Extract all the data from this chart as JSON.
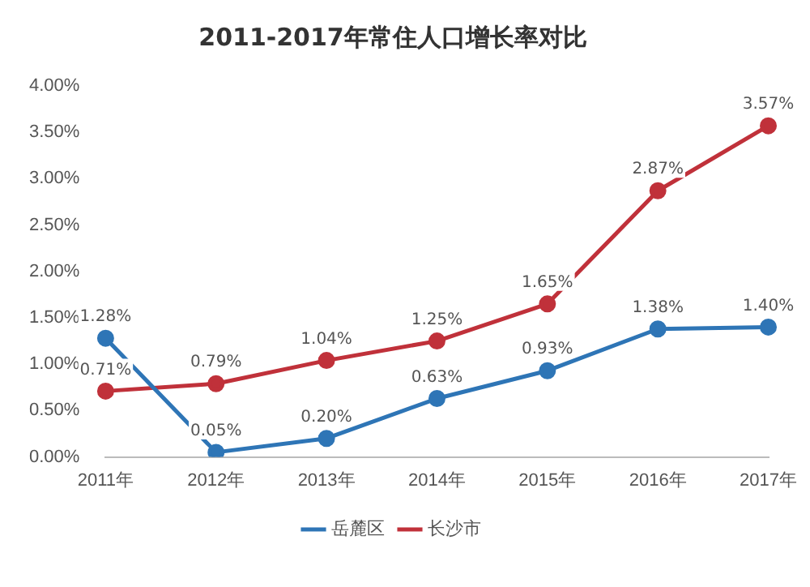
{
  "chart_data": {
    "type": "line",
    "title": "2011-2017年常住人口增长率对比",
    "categories": [
      "2011年",
      "2012年",
      "2013年",
      "2014年",
      "2015年",
      "2016年",
      "2017年"
    ],
    "series": [
      {
        "name": "岳麓区",
        "color": "#2e75b6",
        "values": [
          1.28,
          0.05,
          0.2,
          0.63,
          0.93,
          1.38,
          1.4
        ],
        "value_labels": [
          "1.28%",
          "0.05%",
          "0.20%",
          "0.63%",
          "0.93%",
          "1.38%",
          "1.40%"
        ]
      },
      {
        "name": "长沙市",
        "color": "#c0313a",
        "values": [
          0.71,
          0.79,
          1.04,
          1.25,
          1.65,
          2.87,
          3.57
        ],
        "value_labels": [
          "0.71%",
          "0.79%",
          "1.04%",
          "1.25%",
          "1.65%",
          "2.87%",
          "3.57%"
        ]
      }
    ],
    "ylim": [
      0,
      4
    ],
    "yticks": [
      {
        "value": 0,
        "label": "0.00%"
      },
      {
        "value": 0.5,
        "label": "0.50%"
      },
      {
        "value": 1,
        "label": "1.00%"
      },
      {
        "value": 1.5,
        "label": "1.50%"
      },
      {
        "value": 2,
        "label": "2.00%"
      },
      {
        "value": 2.5,
        "label": "2.50%"
      },
      {
        "value": 3,
        "label": "3.00%"
      },
      {
        "value": 3.5,
        "label": "3.50%"
      },
      {
        "value": 4,
        "label": "4.00%"
      }
    ],
    "grid": false,
    "legend": "bottom",
    "marker": "circle",
    "line_style": "solid"
  }
}
